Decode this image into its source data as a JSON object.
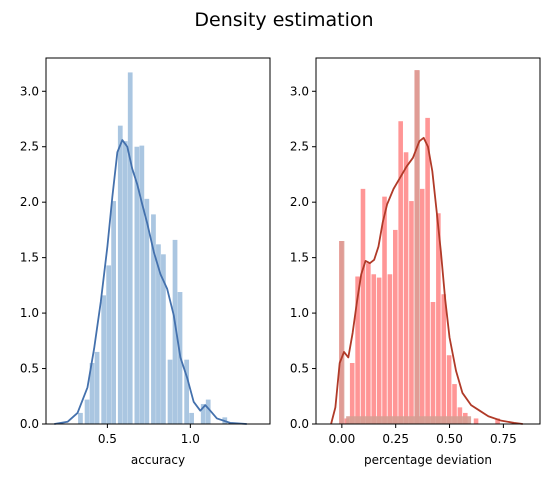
{
  "figure": {
    "title": "Density estimation"
  },
  "chart_data": [
    {
      "type": "histogram",
      "xlabel": "accuracy",
      "ylabel": "",
      "xlim": [
        0.13,
        1.48
      ],
      "ylim": [
        0,
        3.3
      ],
      "xticks": [
        0.5,
        1.0
      ],
      "xtick_labels": [
        "0.5",
        "1.0"
      ],
      "yticks": [
        0.0,
        0.5,
        1.0,
        1.5,
        2.0,
        2.5,
        3.0
      ],
      "ytick_labels": [
        "0.0",
        "0.5",
        "1.0",
        "1.5",
        "2.0",
        "2.5",
        "3.0"
      ],
      "colors": {
        "bar": "#aac6e1",
        "kde": "#4471ad",
        "frame": "#000000"
      },
      "bin_width": 0.0334,
      "bins": [
        {
          "x": 0.34,
          "y": 0.1
        },
        {
          "x": 0.38,
          "y": 0.22
        },
        {
          "x": 0.41,
          "y": 0.55
        },
        {
          "x": 0.44,
          "y": 0.65
        },
        {
          "x": 0.48,
          "y": 1.16
        },
        {
          "x": 0.51,
          "y": 1.43
        },
        {
          "x": 0.54,
          "y": 2.01
        },
        {
          "x": 0.58,
          "y": 2.69
        },
        {
          "x": 0.61,
          "y": 2.55
        },
        {
          "x": 0.64,
          "y": 3.17
        },
        {
          "x": 0.68,
          "y": 2.5
        },
        {
          "x": 0.71,
          "y": 2.51
        },
        {
          "x": 0.74,
          "y": 2.03
        },
        {
          "x": 0.78,
          "y": 1.89
        },
        {
          "x": 0.81,
          "y": 1.62
        },
        {
          "x": 0.84,
          "y": 1.53
        },
        {
          "x": 0.88,
          "y": 0.58
        },
        {
          "x": 0.91,
          "y": 1.66
        },
        {
          "x": 0.94,
          "y": 1.19
        },
        {
          "x": 0.98,
          "y": 0.58
        },
        {
          "x": 1.01,
          "y": 0.1
        },
        {
          "x": 1.08,
          "y": 0.18
        },
        {
          "x": 1.11,
          "y": 0.22
        },
        {
          "x": 1.21,
          "y": 0.06
        }
      ],
      "kde": [
        [
          0.18,
          0.0
        ],
        [
          0.26,
          0.02
        ],
        [
          0.32,
          0.1
        ],
        [
          0.38,
          0.33
        ],
        [
          0.42,
          0.68
        ],
        [
          0.46,
          1.1
        ],
        [
          0.5,
          1.6
        ],
        [
          0.53,
          2.05
        ],
        [
          0.56,
          2.45
        ],
        [
          0.59,
          2.56
        ],
        [
          0.62,
          2.5
        ],
        [
          0.65,
          2.3
        ],
        [
          0.68,
          2.16
        ],
        [
          0.71,
          1.98
        ],
        [
          0.74,
          1.81
        ],
        [
          0.78,
          1.55
        ],
        [
          0.82,
          1.35
        ],
        [
          0.86,
          1.22
        ],
        [
          0.9,
          0.98
        ],
        [
          0.94,
          0.6
        ],
        [
          0.98,
          0.42
        ],
        [
          1.02,
          0.2
        ],
        [
          1.06,
          0.12
        ],
        [
          1.09,
          0.17
        ],
        [
          1.12,
          0.12
        ],
        [
          1.16,
          0.05
        ],
        [
          1.24,
          0.01
        ],
        [
          1.34,
          0.0
        ]
      ]
    },
    {
      "type": "histogram",
      "xlabel": "percentage deviation",
      "ylabel": "",
      "xlim": [
        -0.12,
        0.92
      ],
      "ylim": [
        0,
        3.3
      ],
      "xticks": [
        0.0,
        0.25,
        0.5,
        0.75
      ],
      "xtick_labels": [
        "0.00",
        "0.25",
        "0.50",
        "0.75"
      ],
      "yticks": [
        0.0,
        0.5,
        1.0,
        1.5,
        2.0,
        2.5,
        3.0
      ],
      "ytick_labels": [
        "0.0",
        "0.5",
        "1.0",
        "1.5",
        "2.0",
        "2.5",
        "3.0"
      ],
      "colors": {
        "bar": "#ff9696",
        "bar_overlay": "#d69e94",
        "kde": "#b03a28",
        "frame": "#000000"
      },
      "bin_width": 0.025,
      "bins": [
        {
          "x": 0.0,
          "y": 1.65
        },
        {
          "x": 0.025,
          "y": 0.05
        },
        {
          "x": 0.05,
          "y": 0.55
        },
        {
          "x": 0.075,
          "y": 1.33
        },
        {
          "x": 0.1,
          "y": 2.12
        },
        {
          "x": 0.125,
          "y": 1.45
        },
        {
          "x": 0.15,
          "y": 1.35
        },
        {
          "x": 0.175,
          "y": 1.32
        },
        {
          "x": 0.2,
          "y": 2.05
        },
        {
          "x": 0.225,
          "y": 1.35
        },
        {
          "x": 0.25,
          "y": 1.75
        },
        {
          "x": 0.275,
          "y": 2.73
        },
        {
          "x": 0.3,
          "y": 2.45
        },
        {
          "x": 0.325,
          "y": 2.01
        },
        {
          "x": 0.35,
          "y": 3.19
        },
        {
          "x": 0.375,
          "y": 2.12
        },
        {
          "x": 0.4,
          "y": 2.76
        },
        {
          "x": 0.425,
          "y": 1.1
        },
        {
          "x": 0.45,
          "y": 1.9
        },
        {
          "x": 0.475,
          "y": 1.17
        },
        {
          "x": 0.5,
          "y": 0.62
        },
        {
          "x": 0.525,
          "y": 0.36
        },
        {
          "x": 0.55,
          "y": 0.15
        },
        {
          "x": 0.575,
          "y": 0.1
        },
        {
          "x": 0.625,
          "y": 0.05
        },
        {
          "x": 0.725,
          "y": 0.05
        }
      ],
      "kde": [
        [
          -0.05,
          0.0
        ],
        [
          -0.03,
          0.15
        ],
        [
          -0.01,
          0.55
        ],
        [
          0.01,
          0.65
        ],
        [
          0.03,
          0.6
        ],
        [
          0.05,
          0.82
        ],
        [
          0.07,
          1.1
        ],
        [
          0.09,
          1.35
        ],
        [
          0.11,
          1.47
        ],
        [
          0.13,
          1.45
        ],
        [
          0.15,
          1.48
        ],
        [
          0.17,
          1.6
        ],
        [
          0.19,
          1.82
        ],
        [
          0.21,
          1.98
        ],
        [
          0.24,
          2.12
        ],
        [
          0.27,
          2.22
        ],
        [
          0.3,
          2.32
        ],
        [
          0.33,
          2.4
        ],
        [
          0.36,
          2.55
        ],
        [
          0.38,
          2.58
        ],
        [
          0.4,
          2.5
        ],
        [
          0.42,
          2.28
        ],
        [
          0.44,
          1.92
        ],
        [
          0.46,
          1.55
        ],
        [
          0.48,
          1.12
        ],
        [
          0.5,
          0.78
        ],
        [
          0.53,
          0.48
        ],
        [
          0.56,
          0.28
        ],
        [
          0.6,
          0.17
        ],
        [
          0.64,
          0.12
        ],
        [
          0.68,
          0.07
        ],
        [
          0.74,
          0.03
        ],
        [
          0.8,
          0.01
        ],
        [
          0.84,
          0.0
        ]
      ]
    }
  ]
}
